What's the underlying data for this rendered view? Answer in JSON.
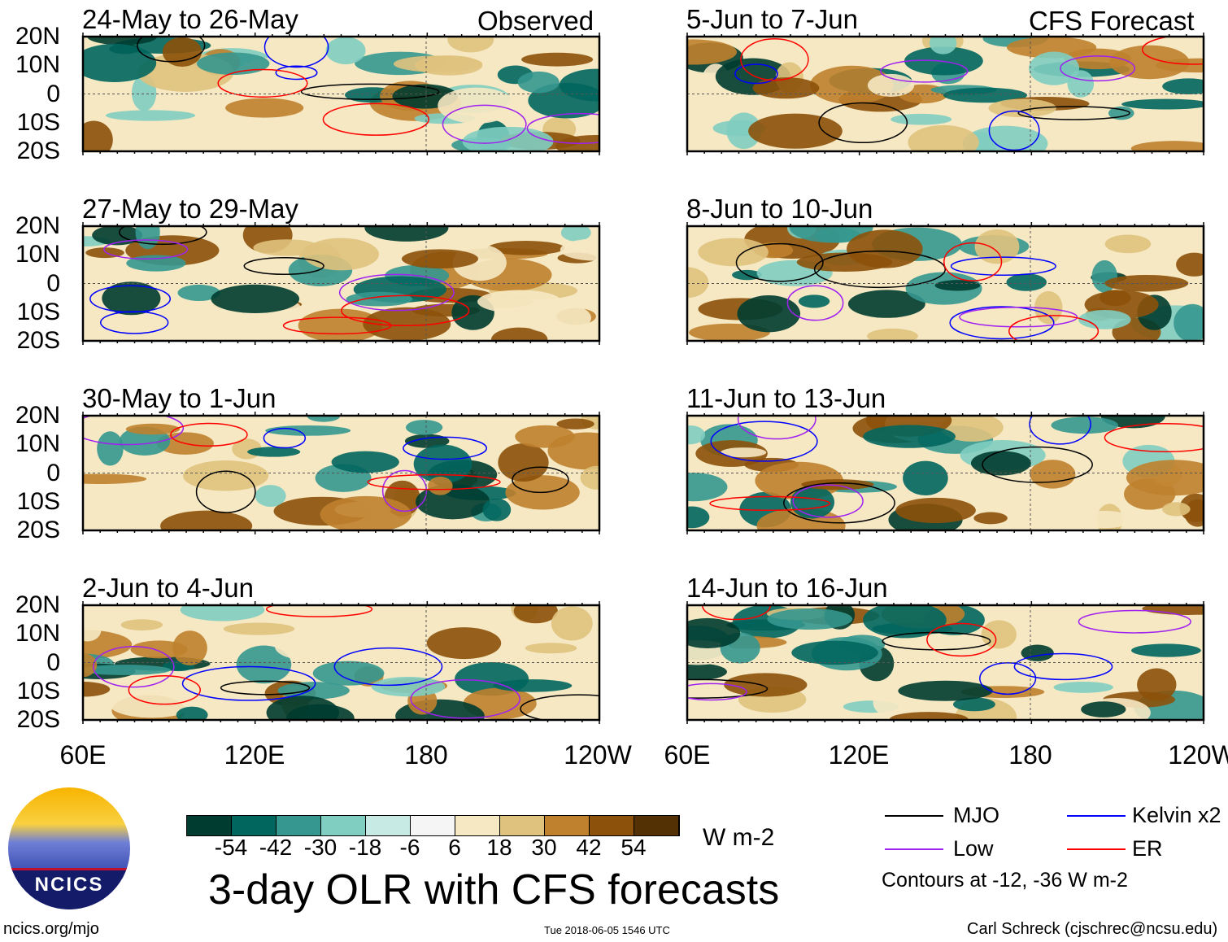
{
  "header": {
    "observed_label": "Observed",
    "forecast_label": "CFS Forecast"
  },
  "chart_data": {
    "type": "heatmap",
    "title": "3-day OLR with CFS forecasts",
    "panels": {
      "observed": [
        "24-May to 26-May",
        "27-May to 29-May",
        "30-May to 1-Jun",
        "2-Jun to 4-Jun"
      ],
      "forecast": [
        "5-Jun to 7-Jun",
        "8-Jun to 10-Jun",
        "11-Jun to 13-Jun",
        "14-Jun to 16-Jun"
      ]
    },
    "lat_ticks": [
      "20N",
      "10N",
      "0",
      "10S",
      "20S"
    ],
    "lon_ticks": [
      "60E",
      "120E",
      "180",
      "120W"
    ],
    "colorbar": {
      "ticks": [
        "-54",
        "-42",
        "-30",
        "-18",
        "-6",
        "6",
        "18",
        "30",
        "42",
        "54"
      ],
      "colors": [
        "#003c30",
        "#01665e",
        "#35978f",
        "#80cdc1",
        "#c7eae5",
        "#f5f5f5",
        "#f6e8c3",
        "#dfc27d",
        "#bf812d",
        "#8c510a",
        "#543005"
      ],
      "units": "W m-2"
    },
    "legend": [
      {
        "label": "MJO",
        "color": "#000000"
      },
      {
        "label": "Kelvin x2",
        "color": "#0000ff"
      },
      {
        "label": "Low",
        "color": "#a020f0"
      },
      {
        "label": "ER",
        "color": "#ff0000"
      }
    ],
    "contour_note": "Contours at -12, -36 W m-2"
  },
  "footer": {
    "site": "ncics.org/mjo",
    "timestamp": "Tue 2018-06-05 1546 UTC",
    "credit": "Carl Schreck (cjschrec@ncsu.edu)",
    "logo_text": "NCICS"
  }
}
